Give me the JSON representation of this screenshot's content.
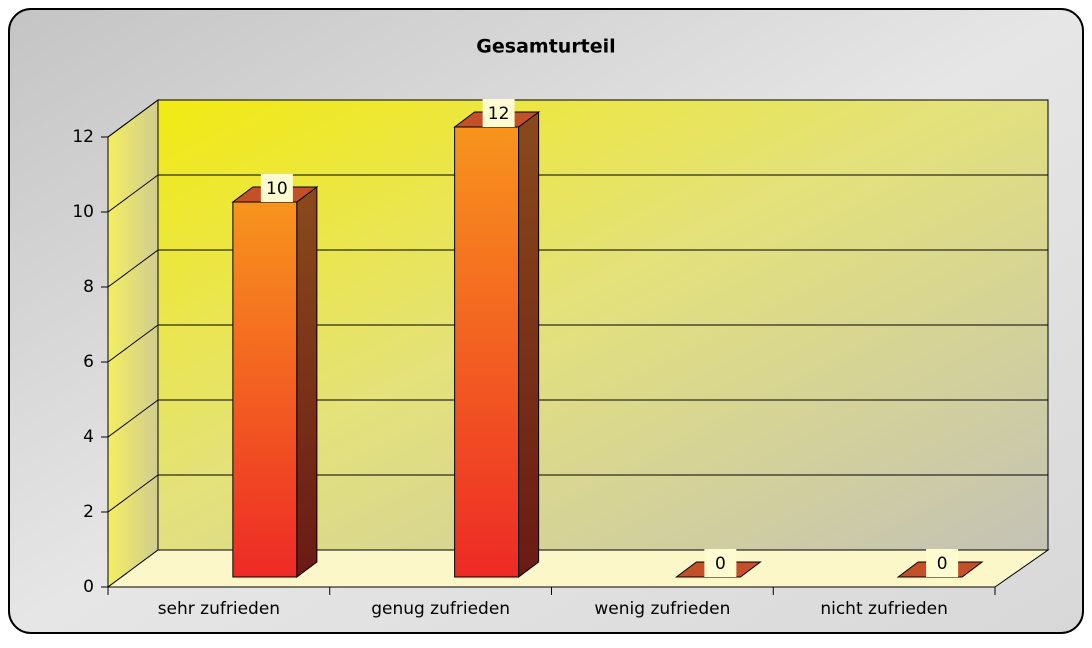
{
  "chart_data": {
    "type": "bar3d",
    "title": "Gesamturteil",
    "categories": [
      "sehr zufrieden",
      "genug zufrieden",
      "wenig zufrieden",
      "nicht zufrieden"
    ],
    "values": [
      10,
      12,
      0,
      0
    ],
    "ylim": [
      0,
      12
    ],
    "yticks": [
      0,
      2,
      4,
      6,
      8,
      10,
      12
    ],
    "grid": true
  }
}
